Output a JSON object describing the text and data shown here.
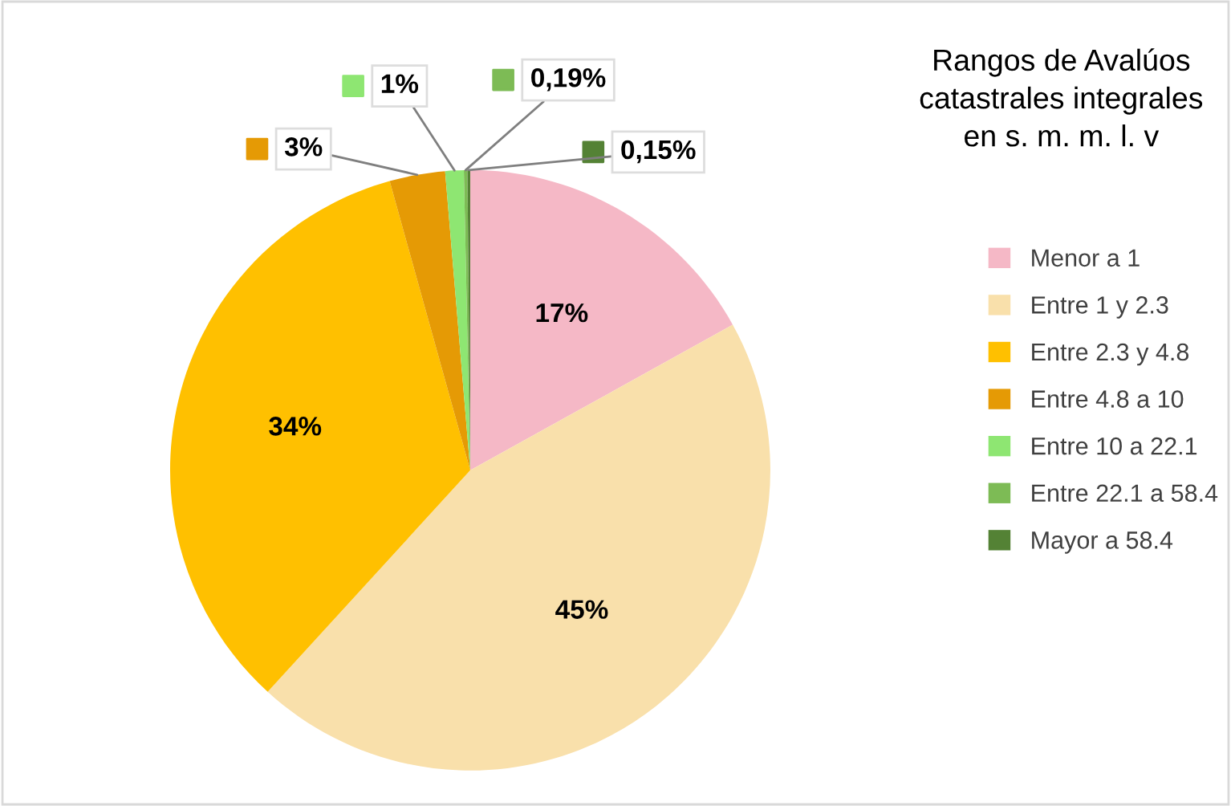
{
  "chart_data": {
    "type": "pie",
    "legend_title": "Rangos de Avalúos\ncatastrales integrales\nen s. m. m. l. v",
    "categories": [
      "Menor a 1",
      "Entre 1 y 2.3",
      "Entre 2.3 y 4.8",
      "Entre 4.8 a 10",
      "Entre 10 a 22.1",
      "Entre 22.1 a 58.4",
      "Mayor a 58.4"
    ],
    "values": [
      17,
      45,
      34,
      3,
      1,
      0.19,
      0.15
    ],
    "colors": [
      "#f5b8c6",
      "#f9e0ab",
      "#ffc000",
      "#e59a05",
      "#8ee672",
      "#7dbb55",
      "#548235"
    ],
    "value_labels": [
      "17%",
      "45%",
      "34%",
      "3%",
      "1%",
      "0,19%",
      "0,15%"
    ],
    "legend": "right"
  }
}
